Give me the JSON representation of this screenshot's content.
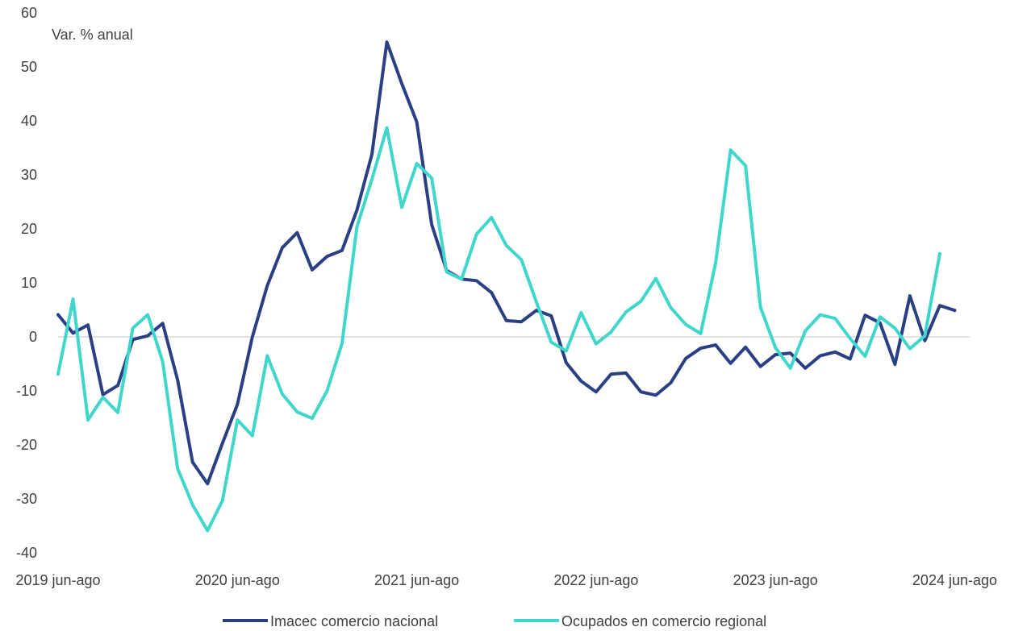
{
  "chart_data": {
    "type": "line",
    "ylabel": "Var. % anual",
    "ylim": [
      -40,
      60
    ],
    "yticks": [
      -40,
      -30,
      -20,
      -10,
      0,
      10,
      20,
      30,
      40,
      50,
      60
    ],
    "x_count": 62,
    "x_tick_labels": [
      {
        "index": 0,
        "label": "2019 jun-ago"
      },
      {
        "index": 12,
        "label": "2020 jun-ago"
      },
      {
        "index": 24,
        "label": "2021 jun-ago"
      },
      {
        "index": 36,
        "label": "2022 jun-ago"
      },
      {
        "index": 48,
        "label": "2023 jun-ago"
      },
      {
        "index": 60,
        "label": "2024 jun-ago"
      }
    ],
    "grid": false,
    "legend_position": "bottom",
    "series": [
      {
        "name": "Imacec comercio nacional",
        "color": "#2a3f84",
        "values": [
          4.1,
          0.7,
          2.2,
          -10.7,
          -9.0,
          -0.5,
          0.2,
          2.5,
          -8.0,
          -23.2,
          -27.2,
          -19.7,
          -12.5,
          0.0,
          9.5,
          16.5,
          19.3,
          12.4,
          14.9,
          16.0,
          23.5,
          33.8,
          54.6,
          46.9,
          39.8,
          20.8,
          12.3,
          10.7,
          10.4,
          8.2,
          3.0,
          2.8,
          4.9,
          3.9,
          -4.8,
          -8.2,
          -10.2,
          -6.9,
          -6.7,
          -10.2,
          -10.8,
          -8.5,
          -4.0,
          -2.1,
          -1.5,
          -4.9,
          -1.9,
          -5.5,
          -3.3,
          -3.0,
          -5.8,
          -3.5,
          -2.8,
          -4.1,
          4.0,
          2.6,
          -5.1,
          7.6,
          -0.7,
          5.8,
          4.9
        ]
      },
      {
        "name": "Ocupados en comercio regional",
        "color": "#3fd6cc",
        "values": [
          -6.9,
          7.0,
          -15.4,
          -11.2,
          -14.0,
          1.6,
          4.1,
          -4.6,
          -24.4,
          -31.1,
          -35.9,
          -30.3,
          -15.4,
          -18.3,
          -3.5,
          -10.6,
          -13.9,
          -15.1,
          -10.0,
          -1.2,
          20.4,
          29.2,
          38.7,
          24.0,
          32.1,
          29.4,
          12.0,
          10.7,
          19.0,
          22.1,
          16.9,
          14.3,
          6.5,
          -1.0,
          -2.6,
          4.5,
          -1.3,
          0.9,
          4.6,
          6.6,
          10.8,
          5.4,
          2.3,
          0.6,
          13.7,
          34.6,
          31.7,
          5.5,
          -2.0,
          -5.8,
          1.1,
          4.1,
          3.4,
          -0.3,
          -3.6,
          3.7,
          1.6,
          -2.2,
          0.2,
          15.4
        ]
      }
    ]
  }
}
